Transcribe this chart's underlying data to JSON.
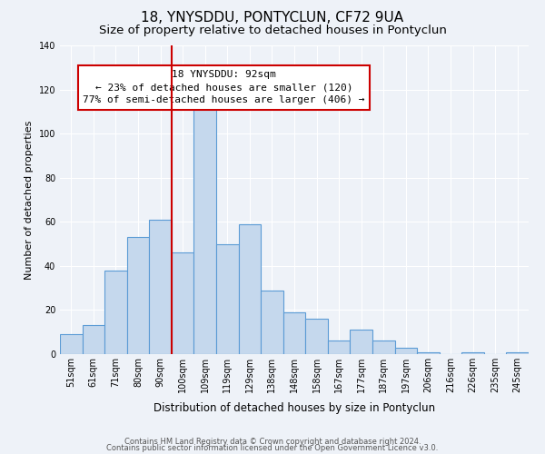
{
  "title": "18, YNYSDDU, PONTYCLUN, CF72 9UA",
  "subtitle": "Size of property relative to detached houses in Pontyclun",
  "xlabel": "Distribution of detached houses by size in Pontyclun",
  "ylabel": "Number of detached properties",
  "bar_labels": [
    "51sqm",
    "61sqm",
    "71sqm",
    "80sqm",
    "90sqm",
    "100sqm",
    "109sqm",
    "119sqm",
    "129sqm",
    "138sqm",
    "148sqm",
    "158sqm",
    "167sqm",
    "177sqm",
    "187sqm",
    "197sqm",
    "206sqm",
    "216sqm",
    "226sqm",
    "235sqm",
    "245sqm"
  ],
  "bar_values": [
    9,
    13,
    38,
    53,
    61,
    46,
    113,
    50,
    59,
    29,
    19,
    16,
    6,
    11,
    6,
    3,
    1,
    0,
    1,
    0,
    1
  ],
  "bar_color": "#c5d8ed",
  "bar_edge_color": "#5b9bd5",
  "bar_edge_width": 0.8,
  "vline_index": 5,
  "vline_color": "#cc0000",
  "ylim": [
    0,
    140
  ],
  "yticks": [
    0,
    20,
    40,
    60,
    80,
    100,
    120,
    140
  ],
  "annotation_title": "18 YNYSDDU: 92sqm",
  "annotation_line1": "← 23% of detached houses are smaller (120)",
  "annotation_line2": "77% of semi-detached houses are larger (406) →",
  "annotation_box_facecolor": "#ffffff",
  "annotation_box_edgecolor": "#cc0000",
  "footer_line1": "Contains HM Land Registry data © Crown copyright and database right 2024.",
  "footer_line2": "Contains public sector information licensed under the Open Government Licence v3.0.",
  "background_color": "#eef2f8",
  "grid_color": "#ffffff",
  "title_fontsize": 11,
  "subtitle_fontsize": 9.5,
  "xlabel_fontsize": 8.5,
  "ylabel_fontsize": 8,
  "tick_fontsize": 7,
  "annotation_fontsize": 8,
  "footer_fontsize": 6
}
